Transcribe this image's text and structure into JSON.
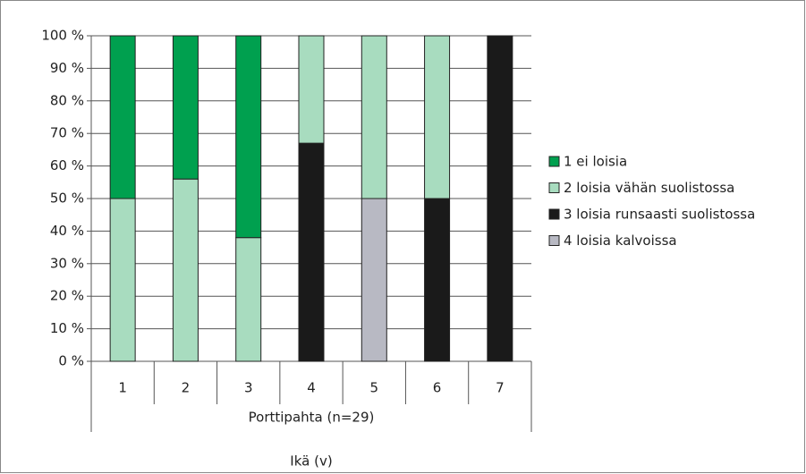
{
  "chart_data": {
    "type": "stacked_bar",
    "categories": [
      "1",
      "2",
      "3",
      "4",
      "5",
      "6",
      "7"
    ],
    "group_label": "Porttipahta (n=29)",
    "x_label": "Ikä (v)",
    "series": [
      {
        "name": "1 ei loisia",
        "color": "#00a04f",
        "values": [
          50,
          44,
          62,
          0,
          0,
          0,
          0
        ]
      },
      {
        "name": "2 loisia vähän suolistossa",
        "color": "#a8dcbf",
        "values": [
          50,
          56,
          38,
          33,
          50,
          50,
          0
        ]
      },
      {
        "name": "3 loisia runsaasti suolistossa",
        "color": "#1a1a1a",
        "values": [
          0,
          0,
          0,
          67,
          0,
          50,
          100
        ]
      },
      {
        "name": "4 loisia kalvoissa",
        "color": "#b8b9c3",
        "values": [
          0,
          0,
          0,
          0,
          50,
          0,
          0
        ]
      }
    ],
    "ylim": [
      0,
      100
    ],
    "yticks": [
      {
        "value": 0,
        "label": "0 %"
      },
      {
        "value": 10,
        "label": "10 %"
      },
      {
        "value": 20,
        "label": "20 %"
      },
      {
        "value": 30,
        "label": "30 %"
      },
      {
        "value": 40,
        "label": "40 %"
      },
      {
        "value": 50,
        "label": "50 %"
      },
      {
        "value": 60,
        "label": "60 %"
      },
      {
        "value": 70,
        "label": "70 %"
      },
      {
        "value": 80,
        "label": "80 %"
      },
      {
        "value": 90,
        "label": "90 %"
      },
      {
        "value": 100,
        "label": "100 %"
      }
    ],
    "grid": true
  }
}
